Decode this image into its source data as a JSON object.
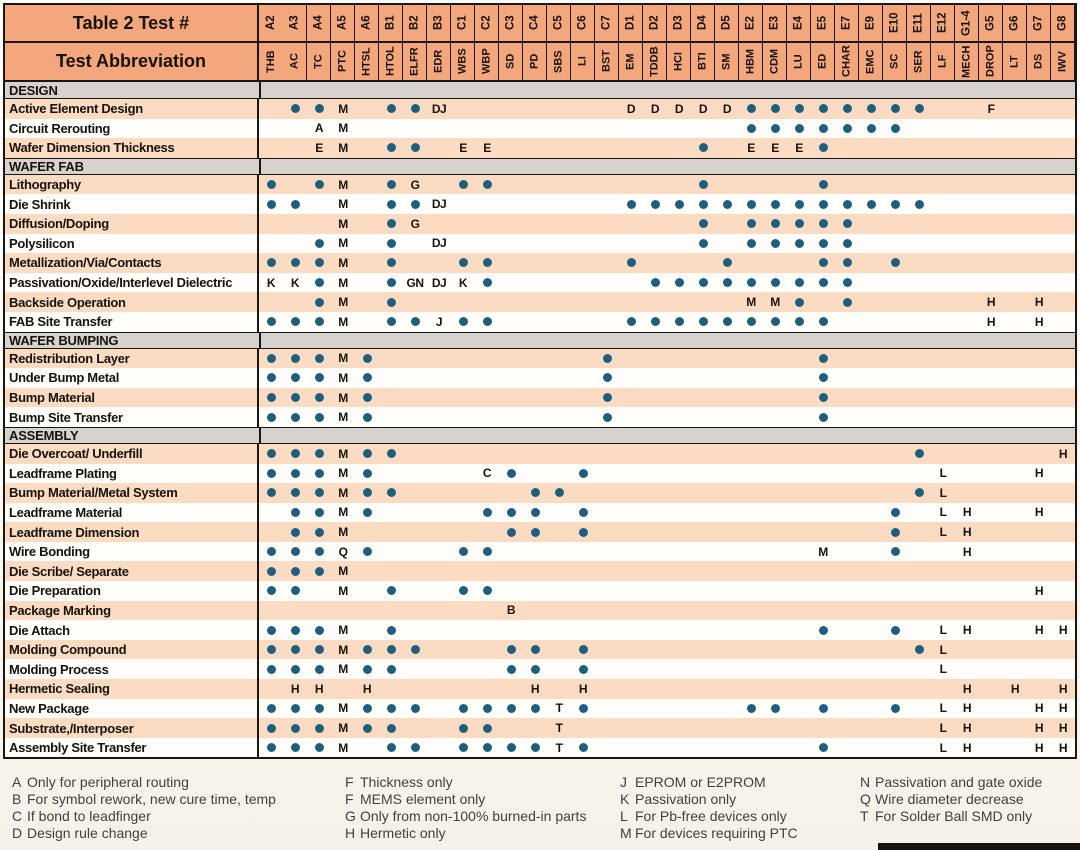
{
  "header": {
    "row1_label": "Table 2 Test #",
    "row2_label": "Test Abbreviation"
  },
  "columns": [
    {
      "test_num": "A2",
      "abbr": "THB"
    },
    {
      "test_num": "A3",
      "abbr": "AC"
    },
    {
      "test_num": "A4",
      "abbr": "TC"
    },
    {
      "test_num": "A5",
      "abbr": "PTC"
    },
    {
      "test_num": "A6",
      "abbr": "HTSL"
    },
    {
      "test_num": "B1",
      "abbr": "HTOL"
    },
    {
      "test_num": "B2",
      "abbr": "ELFR"
    },
    {
      "test_num": "B3",
      "abbr": "EDR"
    },
    {
      "test_num": "C1",
      "abbr": "WBS"
    },
    {
      "test_num": "C2",
      "abbr": "WBP"
    },
    {
      "test_num": "C3",
      "abbr": "SD"
    },
    {
      "test_num": "C4",
      "abbr": "PD"
    },
    {
      "test_num": "C5",
      "abbr": "SBS"
    },
    {
      "test_num": "C6",
      "abbr": "LI"
    },
    {
      "test_num": "C7",
      "abbr": "BST"
    },
    {
      "test_num": "D1",
      "abbr": "EM"
    },
    {
      "test_num": "D2",
      "abbr": "TDDB"
    },
    {
      "test_num": "D3",
      "abbr": "HCI"
    },
    {
      "test_num": "D4",
      "abbr": "BTI"
    },
    {
      "test_num": "D5",
      "abbr": "SM"
    },
    {
      "test_num": "E2",
      "abbr": "HBM"
    },
    {
      "test_num": "E3",
      "abbr": "CDM"
    },
    {
      "test_num": "E4",
      "abbr": "LU"
    },
    {
      "test_num": "E5",
      "abbr": "ED"
    },
    {
      "test_num": "E7",
      "abbr": "CHAR"
    },
    {
      "test_num": "E9",
      "abbr": "EMC"
    },
    {
      "test_num": "E10",
      "abbr": "SC"
    },
    {
      "test_num": "E11",
      "abbr": "SER"
    },
    {
      "test_num": "E12",
      "abbr": "LF"
    },
    {
      "test_num": "G1-4",
      "abbr": "MECH"
    },
    {
      "test_num": "G5",
      "abbr": "DROP"
    },
    {
      "test_num": "G6",
      "abbr": "LT"
    },
    {
      "test_num": "G7",
      "abbr": "DS"
    },
    {
      "test_num": "G8",
      "abbr": "IWV"
    }
  ],
  "sections": [
    {
      "title": "DESIGN",
      "rows": [
        {
          "label": "Active Element Design",
          "cells": {
            "A3": "●",
            "A4": "●",
            "A5": "M",
            "B1": "●",
            "B2": "●",
            "B3": "DJ",
            "D1": "D",
            "D2": "D",
            "D3": "D",
            "D4": "D",
            "D5": "D",
            "E2": "●",
            "E3": "●",
            "E4": "●",
            "E5": "●",
            "E7": "●",
            "E9": "●",
            "E10": "●",
            "E11": "●",
            "G5": "F"
          }
        },
        {
          "label": "Circuit Rerouting",
          "cells": {
            "A4": "A",
            "A5": "M",
            "E2": "●",
            "E3": "●",
            "E4": "●",
            "E5": "●",
            "E7": "●",
            "E9": "●",
            "E10": "●"
          }
        },
        {
          "label": "Wafer Dimension Thickness",
          "cells": {
            "A4": "E",
            "A5": "M",
            "B1": "●",
            "B2": "●",
            "C1": "E",
            "C2": "E",
            "D4": "●",
            "E2": "E",
            "E3": "E",
            "E4": "E",
            "E5": "●"
          }
        }
      ]
    },
    {
      "title": "WAFER FAB",
      "rows": [
        {
          "label": "Lithography",
          "cells": {
            "A2": "●",
            "A4": "●",
            "A5": "M",
            "B1": "●",
            "B2": "G",
            "C1": "●",
            "C2": "●",
            "D4": "●",
            "E5": "●"
          }
        },
        {
          "label": "Die Shrink",
          "cells": {
            "A2": "●",
            "A3": "●",
            "A5": "M",
            "B1": "●",
            "B2": "●",
            "B3": "DJ",
            "D1": "●",
            "D2": "●",
            "D3": "●",
            "D4": "●",
            "D5": "●",
            "E2": "●",
            "E3": "●",
            "E4": "●",
            "E5": "●",
            "E7": "●",
            "E9": "●",
            "E10": "●",
            "E11": "●"
          }
        },
        {
          "label": "Diffusion/Doping",
          "cells": {
            "A5": "M",
            "B1": "●",
            "B2": "G",
            "D4": "●",
            "E2": "●",
            "E3": "●",
            "E4": "●",
            "E5": "●",
            "E7": "●"
          }
        },
        {
          "label": "Polysilicon",
          "cells": {
            "A4": "●",
            "A5": "M",
            "B1": "●",
            "B3": "DJ",
            "D4": "●",
            "E2": "●",
            "E3": "●",
            "E4": "●",
            "E5": "●",
            "E7": "●"
          }
        },
        {
          "label": "Metallization/Via/Contacts",
          "cells": {
            "A2": "●",
            "A3": "●",
            "A4": "●",
            "A5": "M",
            "B1": "●",
            "C1": "●",
            "C2": "●",
            "D1": "●",
            "D5": "●",
            "E5": "●",
            "E7": "●",
            "E10": "●"
          }
        },
        {
          "label": "Passivation/Oxide/Interlevel Dielectric",
          "cells": {
            "A2": "K",
            "A3": "K",
            "A4": "●",
            "A5": "M",
            "B1": "●",
            "B2": "GN",
            "B3": "DJ",
            "C1": "K",
            "C2": "●",
            "D2": "●",
            "D3": "●",
            "D4": "●",
            "D5": "●",
            "E2": "●",
            "E3": "●",
            "E4": "●",
            "E5": "●",
            "E7": "●"
          }
        },
        {
          "label": "Backside Operation",
          "cells": {
            "A4": "●",
            "A5": "M",
            "B1": "●",
            "E2": "M",
            "E3": "M",
            "E4": "●",
            "E7": "●",
            "G5": "H",
            "G7": "H"
          }
        },
        {
          "label": "FAB Site Transfer",
          "cells": {
            "A2": "●",
            "A3": "●",
            "A4": "●",
            "A5": "M",
            "B1": "●",
            "B2": "●",
            "B3": "J",
            "C1": "●",
            "C2": "●",
            "D1": "●",
            "D2": "●",
            "D3": "●",
            "D4": "●",
            "D5": "●",
            "E2": "●",
            "E3": "●",
            "E4": "●",
            "E5": "●",
            "G5": "H",
            "G7": "H"
          }
        }
      ]
    },
    {
      "title": "WAFER BUMPING",
      "rows": [
        {
          "label": "Redistribution Layer",
          "cells": {
            "A2": "●",
            "A3": "●",
            "A4": "●",
            "A5": "M",
            "A6": "●",
            "C7": "●",
            "E5": "●"
          }
        },
        {
          "label": "Under Bump Metal",
          "cells": {
            "A2": "●",
            "A3": "●",
            "A4": "●",
            "A5": "M",
            "A6": "●",
            "C7": "●",
            "E5": "●"
          }
        },
        {
          "label": "Bump Material",
          "cells": {
            "A2": "●",
            "A3": "●",
            "A4": "●",
            "A5": "M",
            "A6": "●",
            "C7": "●",
            "E5": "●"
          }
        },
        {
          "label": "Bump Site Transfer",
          "cells": {
            "A2": "●",
            "A3": "●",
            "A4": "●",
            "A5": "M",
            "A6": "●",
            "C7": "●",
            "E5": "●"
          }
        }
      ]
    },
    {
      "title": "ASSEMBLY",
      "rows": [
        {
          "label": "Die Overcoat/ Underfill",
          "cells": {
            "A2": "●",
            "A3": "●",
            "A4": "●",
            "A5": "M",
            "A6": "●",
            "B1": "●",
            "E11": "●",
            "G8": "H"
          }
        },
        {
          "label": "Leadframe Plating",
          "cells": {
            "A2": "●",
            "A3": "●",
            "A4": "●",
            "A5": "M",
            "A6": "●",
            "C2": "C",
            "C3": "●",
            "C6": "●",
            "E12": "L",
            "G7": "H"
          }
        },
        {
          "label": "Bump Material/Metal System",
          "cells": {
            "A2": "●",
            "A3": "●",
            "A4": "●",
            "A5": "M",
            "A6": "●",
            "B1": "●",
            "C4": "●",
            "C5": "●",
            "E11": "●",
            "E12": "L"
          }
        },
        {
          "label": "Leadframe Material",
          "cells": {
            "A3": "●",
            "A4": "●",
            "A5": "M",
            "A6": "●",
            "C2": "●",
            "C3": "●",
            "C4": "●",
            "C6": "●",
            "E10": "●",
            "E12": "L",
            "G1-4": "H",
            "G7": "H"
          }
        },
        {
          "label": "Leadframe Dimension",
          "cells": {
            "A3": "●",
            "A4": "●",
            "A5": "M",
            "C3": "●",
            "C4": "●",
            "C6": "●",
            "E10": "●",
            "E12": "L",
            "G1-4": "H"
          }
        },
        {
          "label": "Wire Bonding",
          "cells": {
            "A2": "●",
            "A3": "●",
            "A4": "●",
            "A5": "Q",
            "A6": "●",
            "C1": "●",
            "C2": "●",
            "E5": "M",
            "E10": "●",
            "G1-4": "H"
          }
        },
        {
          "label": "Die Scribe/ Separate",
          "cells": {
            "A2": "●",
            "A3": "●",
            "A4": "●",
            "A5": "M"
          }
        },
        {
          "label": "Die Preparation",
          "cells": {
            "A2": "●",
            "A3": "●",
            "A5": "M",
            "B1": "●",
            "C1": "●",
            "C2": "●",
            "G7": "H"
          }
        },
        {
          "label": "Package Marking",
          "cells": {
            "C3": "B"
          }
        },
        {
          "label": "Die Attach",
          "cells": {
            "A2": "●",
            "A3": "●",
            "A4": "●",
            "A5": "M",
            "B1": "●",
            "E5": "●",
            "E10": "●",
            "E12": "L",
            "G1-4": "H",
            "G7": "H",
            "G8": "H"
          }
        },
        {
          "label": "Molding Compound",
          "cells": {
            "A2": "●",
            "A3": "●",
            "A4": "●",
            "A5": "M",
            "A6": "●",
            "B1": "●",
            "B2": "●",
            "C3": "●",
            "C4": "●",
            "C6": "●",
            "E11": "●",
            "E12": "L"
          }
        },
        {
          "label": "Molding Process",
          "cells": {
            "A2": "●",
            "A3": "●",
            "A4": "●",
            "A5": "M",
            "A6": "●",
            "B1": "●",
            "C3": "●",
            "C4": "●",
            "C6": "●",
            "E12": "L"
          }
        },
        {
          "label": "Hermetic Sealing",
          "cells": {
            "A3": "H",
            "A4": "H",
            "A6": "H",
            "C4": "H",
            "C6": "H",
            "G1-4": "H",
            "G6": "H",
            "G8": "H"
          }
        },
        {
          "label": "New Package",
          "cells": {
            "A2": "●",
            "A3": "●",
            "A4": "●",
            "A5": "M",
            "A6": "●",
            "B1": "●",
            "B2": "●",
            "C1": "●",
            "C2": "●",
            "C3": "●",
            "C4": "●",
            "C5": "T",
            "C6": "●",
            "E2": "●",
            "E3": "●",
            "E5": "●",
            "E10": "●",
            "E12": "L",
            "G1-4": "H",
            "G7": "H",
            "G8": "H"
          }
        },
        {
          "label": "Substrate,/Interposer",
          "cells": {
            "A2": "●",
            "A3": "●",
            "A4": "●",
            "A5": "M",
            "A6": "●",
            "B1": "●",
            "C1": "●",
            "C2": "●",
            "C5": "T",
            "E12": "L",
            "G1-4": "H",
            "G7": "H",
            "G8": "H"
          }
        },
        {
          "label": "Assembly Site Transfer",
          "cells": {
            "A2": "●",
            "A3": "●",
            "A4": "●",
            "A5": "M",
            "B1": "●",
            "B2": "●",
            "C1": "●",
            "C2": "●",
            "C3": "●",
            "C4": "●",
            "C5": "T",
            "C6": "●",
            "E5": "●",
            "E12": "L",
            "G1-4": "H",
            "G7": "H",
            "G8": "H"
          }
        }
      ]
    }
  ],
  "footnotes": [
    [
      {
        "k": "A",
        "t": "Only for peripheral routing"
      },
      {
        "k": "B",
        "t": "For symbol rework, new cure time, temp"
      },
      {
        "k": "C",
        "t": "If bond to leadfinger"
      },
      {
        "k": "D",
        "t": "Design rule change"
      }
    ],
    [
      {
        "k": "F",
        "t": "Thickness only"
      },
      {
        "k": "F",
        "t": "MEMS element only"
      },
      {
        "k": "G",
        "t": "Only from non-100% burned-in parts"
      },
      {
        "k": "H",
        "t": "Hermetic only"
      }
    ],
    [
      {
        "k": "J",
        "t": "EPROM or E2PROM"
      },
      {
        "k": "K",
        "t": "Passivation only"
      },
      {
        "k": "L",
        "t": "For Pb-free devices only"
      },
      {
        "k": "M",
        "t": "For devices requiring PTC"
      }
    ],
    [
      {
        "k": "N",
        "t": "Passivation and gate oxide"
      },
      {
        "k": "Q",
        "t": "Wire diameter decrease"
      },
      {
        "k": "T",
        "t": "For Solder Ball SMD only"
      }
    ]
  ],
  "colors": {
    "header_bg": "#f4a67c",
    "stripe_bg": "#fbdcc2",
    "row_white": "#fffefb",
    "section_bg": "#d6d3cf",
    "dot_color": "#1e5f80",
    "border_color": "#1a1712",
    "ink_color": "#16120c",
    "note_color": "#3f3f3f"
  }
}
